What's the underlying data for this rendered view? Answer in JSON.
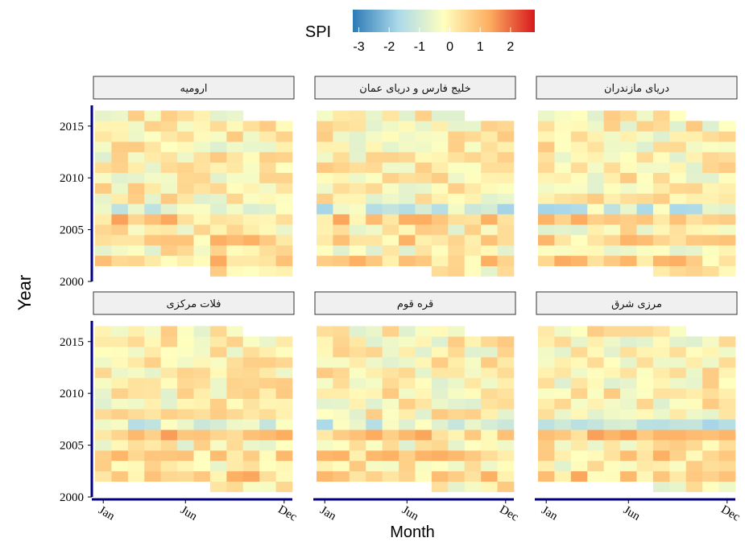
{
  "chart_data": {
    "type": "heatmap",
    "xlabel": "Month",
    "ylabel": "Year",
    "legend": {
      "title": "SPI",
      "ticks": [
        "-3",
        "-2",
        "-1",
        "0",
        "1",
        "2"
      ],
      "range": [
        -3.2,
        2.8
      ],
      "placement": "top",
      "colors": [
        "#2c7bb6",
        "#abd9e9",
        "#ffffbf",
        "#fdae61",
        "#d7191c"
      ]
    },
    "x_ticks": [
      {
        "label": "Jan",
        "month": 1
      },
      {
        "label": "Jun",
        "month": 6
      },
      {
        "label": "Dec",
        "month": 12
      }
    ],
    "y_ticks": [
      2000,
      2005,
      2010,
      2015
    ],
    "ylim": [
      2000,
      2016
    ],
    "years": [
      2001,
      2002,
      2003,
      2004,
      2005,
      2006,
      2007,
      2008,
      2009,
      2010,
      2011,
      2012,
      2013,
      2014,
      2015,
      2016
    ],
    "panels": [
      {
        "title": "ارومیه",
        "values": [
          [
            null,
            null,
            null,
            null,
            null,
            null,
            null,
            null,
            null,
            null,
            null,
            null
          ],
          [
            null,
            null,
            null,
            null,
            null,
            null,
            null,
            null,
            null,
            null,
            null,
            null
          ],
          [
            null,
            null,
            null,
            null,
            null,
            null,
            null,
            null,
            null,
            null,
            null,
            null
          ],
          [
            null,
            null,
            null,
            null,
            null,
            null,
            null,
            null,
            null,
            null,
            null,
            null
          ],
          [
            null,
            null,
            null,
            null,
            null,
            null,
            null,
            null,
            null,
            null,
            null,
            null
          ],
          [
            null,
            null,
            null,
            null,
            null,
            null,
            null,
            null,
            null,
            null,
            null,
            null
          ],
          [
            null,
            null,
            null,
            null,
            null,
            null,
            null,
            null,
            null,
            null,
            null,
            null
          ],
          [
            null,
            null,
            null,
            null,
            null,
            null,
            null,
            null,
            null,
            null,
            null,
            null
          ],
          [
            null,
            null,
            null,
            null,
            null,
            null,
            null,
            null,
            null,
            null,
            null,
            null
          ],
          [
            null,
            null,
            null,
            null,
            null,
            null,
            null,
            null,
            null,
            null,
            null,
            null
          ],
          [
            null,
            null,
            null,
            null,
            null,
            null,
            null,
            null,
            null,
            null,
            null,
            null
          ],
          [
            null,
            null,
            null,
            null,
            null,
            null,
            null,
            null,
            null,
            null,
            null,
            null
          ],
          [
            null,
            null,
            null,
            null,
            null,
            null,
            null,
            null,
            null,
            null,
            null,
            null
          ],
          [
            null,
            null,
            null,
            null,
            null,
            null,
            null,
            null,
            null,
            null,
            null,
            null
          ],
          [
            null,
            null,
            null,
            null,
            null,
            null,
            null,
            null,
            null,
            null,
            null,
            null
          ],
          [
            null,
            null,
            null,
            null,
            null,
            null,
            null,
            null,
            null,
            null,
            null,
            null
          ]
        ]
      },
      {
        "title": "خلیج فارس و دریای عمان",
        "values": []
      },
      {
        "title": "دریای مازندران",
        "values": []
      },
      {
        "title": "فلات مرکزی",
        "values": []
      },
      {
        "title": "قره قوم",
        "values": []
      },
      {
        "title": "مرزی شرق",
        "values": []
      }
    ]
  }
}
